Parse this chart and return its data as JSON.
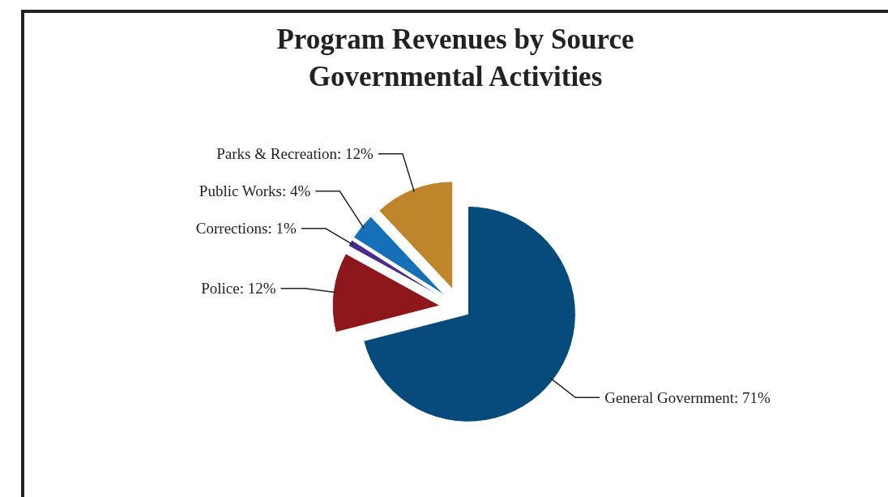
{
  "chart_data": {
    "type": "pie",
    "title": "Program Revenues by Source\nGovernmental Activities",
    "categories": [
      "General Government",
      "Police",
      "Corrections",
      "Public Works",
      "Parks & Recreation"
    ],
    "values": [
      71,
      12,
      1,
      4,
      12
    ],
    "value_labels": [
      "71%",
      "12%",
      "1%",
      "4%",
      "12%"
    ],
    "colors": [
      "#074b7d",
      "#8e171b",
      "#4a2c8a",
      "#1570b8",
      "#be852b"
    ]
  }
}
